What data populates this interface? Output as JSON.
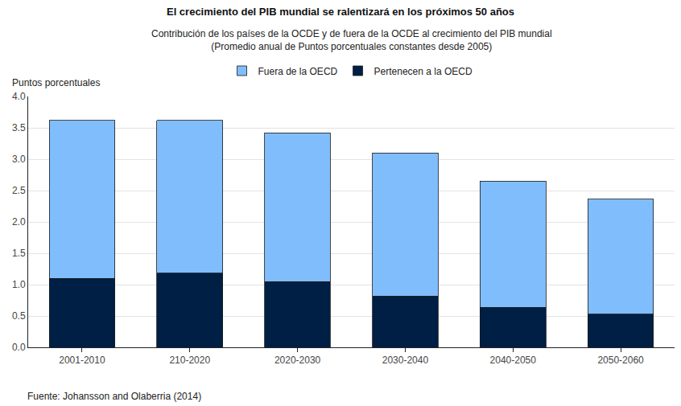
{
  "chart_data": {
    "type": "bar",
    "stacked": true,
    "title": "El crecimiento del PIB mundial se ralentizará en los próximos 50 años",
    "subtitle": "Contribución de los países de la OCDE y de fuera de la OCDE al crecimiento del PIB mundial\n(Promedio anual de Puntos porcentuales constantes desde 2005)",
    "ylabel": "Puntos porcentuales",
    "source": "Fuente: Johansson and Olaberria (2014)",
    "categories": [
      "2001-2010",
      "210-2020",
      "2020-2030",
      "2030-2040",
      "2040-2050",
      "2050-2060"
    ],
    "series": [
      {
        "name": "Pertenecen a la OECD",
        "color": "#001f45",
        "values": [
          1.1,
          1.18,
          1.05,
          0.82,
          0.64,
          0.53
        ]
      },
      {
        "name": "Fuera de la OECD",
        "color": "#80bdfc",
        "values": [
          2.52,
          2.44,
          2.37,
          2.28,
          2.01,
          1.83
        ]
      }
    ],
    "ylim": [
      0,
      4
    ],
    "yticks": [
      {
        "value": 0,
        "label": "0.0"
      },
      0.5,
      {
        "value": 1,
        "label": "1.0"
      },
      1.5,
      {
        "value": 2,
        "label": "2.0"
      },
      2.5,
      {
        "value": 3,
        "label": "3.0"
      },
      3.5,
      {
        "value": 4,
        "label": "4.0"
      }
    ],
    "grid": true,
    "legend": "top"
  }
}
